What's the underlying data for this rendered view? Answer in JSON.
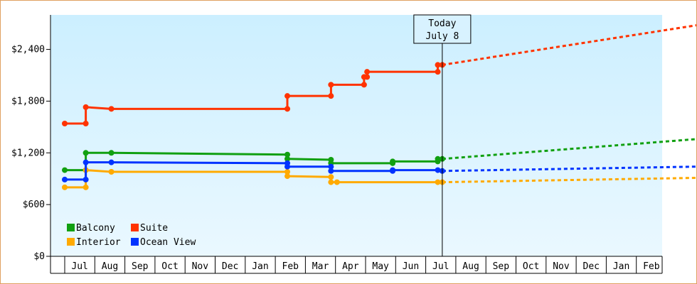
{
  "chart_data": {
    "type": "line",
    "title": "",
    "xlabel": "",
    "ylabel": "",
    "ylim": [
      0,
      2800
    ],
    "y_ticks": [
      {
        "value": 0,
        "label": "$0"
      },
      {
        "value": 600,
        "label": "$600"
      },
      {
        "value": 1200,
        "label": "$1,200"
      },
      {
        "value": 1800,
        "label": "$1,800"
      },
      {
        "value": 2400,
        "label": "$2,400"
      }
    ],
    "x_range_months": [
      0,
      21
    ],
    "x_ticks": [
      "Jul",
      "Aug",
      "Sep",
      "Oct",
      "Nov",
      "Dec",
      "Jan",
      "Feb",
      "Mar",
      "Apr",
      "May",
      "Jun",
      "Jul",
      "Aug",
      "Sep",
      "Oct",
      "Nov",
      "Dec",
      "Jan",
      "Feb"
    ],
    "grid": false,
    "background_gradient": [
      "#ccefff",
      "#eaf8ff"
    ],
    "legend_position": "bottom-left",
    "today_marker": {
      "x": 12.55,
      "line1": "Today",
      "line2": "July 8"
    },
    "series": [
      {
        "name": "Balcony",
        "color": "#11a011",
        "points": [
          [
            0,
            1000
          ],
          [
            0.7,
            1000
          ],
          [
            0.7,
            1200
          ],
          [
            1.55,
            1200
          ],
          [
            7.4,
            1180
          ],
          [
            7.4,
            1130
          ],
          [
            8.85,
            1120
          ],
          [
            8.85,
            1080
          ],
          [
            10.9,
            1080
          ],
          [
            10.9,
            1100
          ],
          [
            12.4,
            1100
          ],
          [
            12.4,
            1130
          ],
          [
            12.55,
            1130
          ]
        ],
        "projection": [
          [
            12.55,
            1130
          ],
          [
            21,
            1360
          ]
        ]
      },
      {
        "name": "Suite",
        "color": "#ff3300",
        "points": [
          [
            0,
            1540
          ],
          [
            0.7,
            1540
          ],
          [
            0.7,
            1730
          ],
          [
            1.55,
            1710
          ],
          [
            7.4,
            1710
          ],
          [
            7.4,
            1860
          ],
          [
            8.85,
            1860
          ],
          [
            8.85,
            1990
          ],
          [
            9.95,
            1990
          ],
          [
            9.95,
            2080
          ],
          [
            10.05,
            2080
          ],
          [
            10.05,
            2140
          ],
          [
            12.4,
            2140
          ],
          [
            12.4,
            2220
          ],
          [
            12.55,
            2220
          ]
        ],
        "projection": [
          [
            12.55,
            2220
          ],
          [
            21,
            2680
          ]
        ]
      },
      {
        "name": "Interior",
        "color": "#ffaa00",
        "points": [
          [
            0,
            800
          ],
          [
            0.7,
            800
          ],
          [
            0.7,
            1000
          ],
          [
            1.55,
            980
          ],
          [
            7.4,
            980
          ],
          [
            7.4,
            930
          ],
          [
            8.85,
            920
          ],
          [
            8.85,
            860
          ],
          [
            9.05,
            860
          ],
          [
            12.4,
            860
          ],
          [
            12.55,
            860
          ]
        ],
        "projection": [
          [
            12.55,
            860
          ],
          [
            21,
            910
          ]
        ]
      },
      {
        "name": "Ocean View",
        "color": "#0033ff",
        "points": [
          [
            0,
            890
          ],
          [
            0.7,
            890
          ],
          [
            0.7,
            1090
          ],
          [
            1.55,
            1090
          ],
          [
            7.4,
            1080
          ],
          [
            7.4,
            1040
          ],
          [
            8.85,
            1040
          ],
          [
            8.85,
            990
          ],
          [
            10.9,
            990
          ],
          [
            10.9,
            1000
          ],
          [
            12.4,
            1000
          ],
          [
            12.55,
            990
          ]
        ],
        "projection": [
          [
            12.55,
            990
          ],
          [
            21,
            1040
          ]
        ]
      }
    ],
    "legend_order": [
      "Balcony",
      "Suite",
      "Interior",
      "Ocean View"
    ]
  }
}
